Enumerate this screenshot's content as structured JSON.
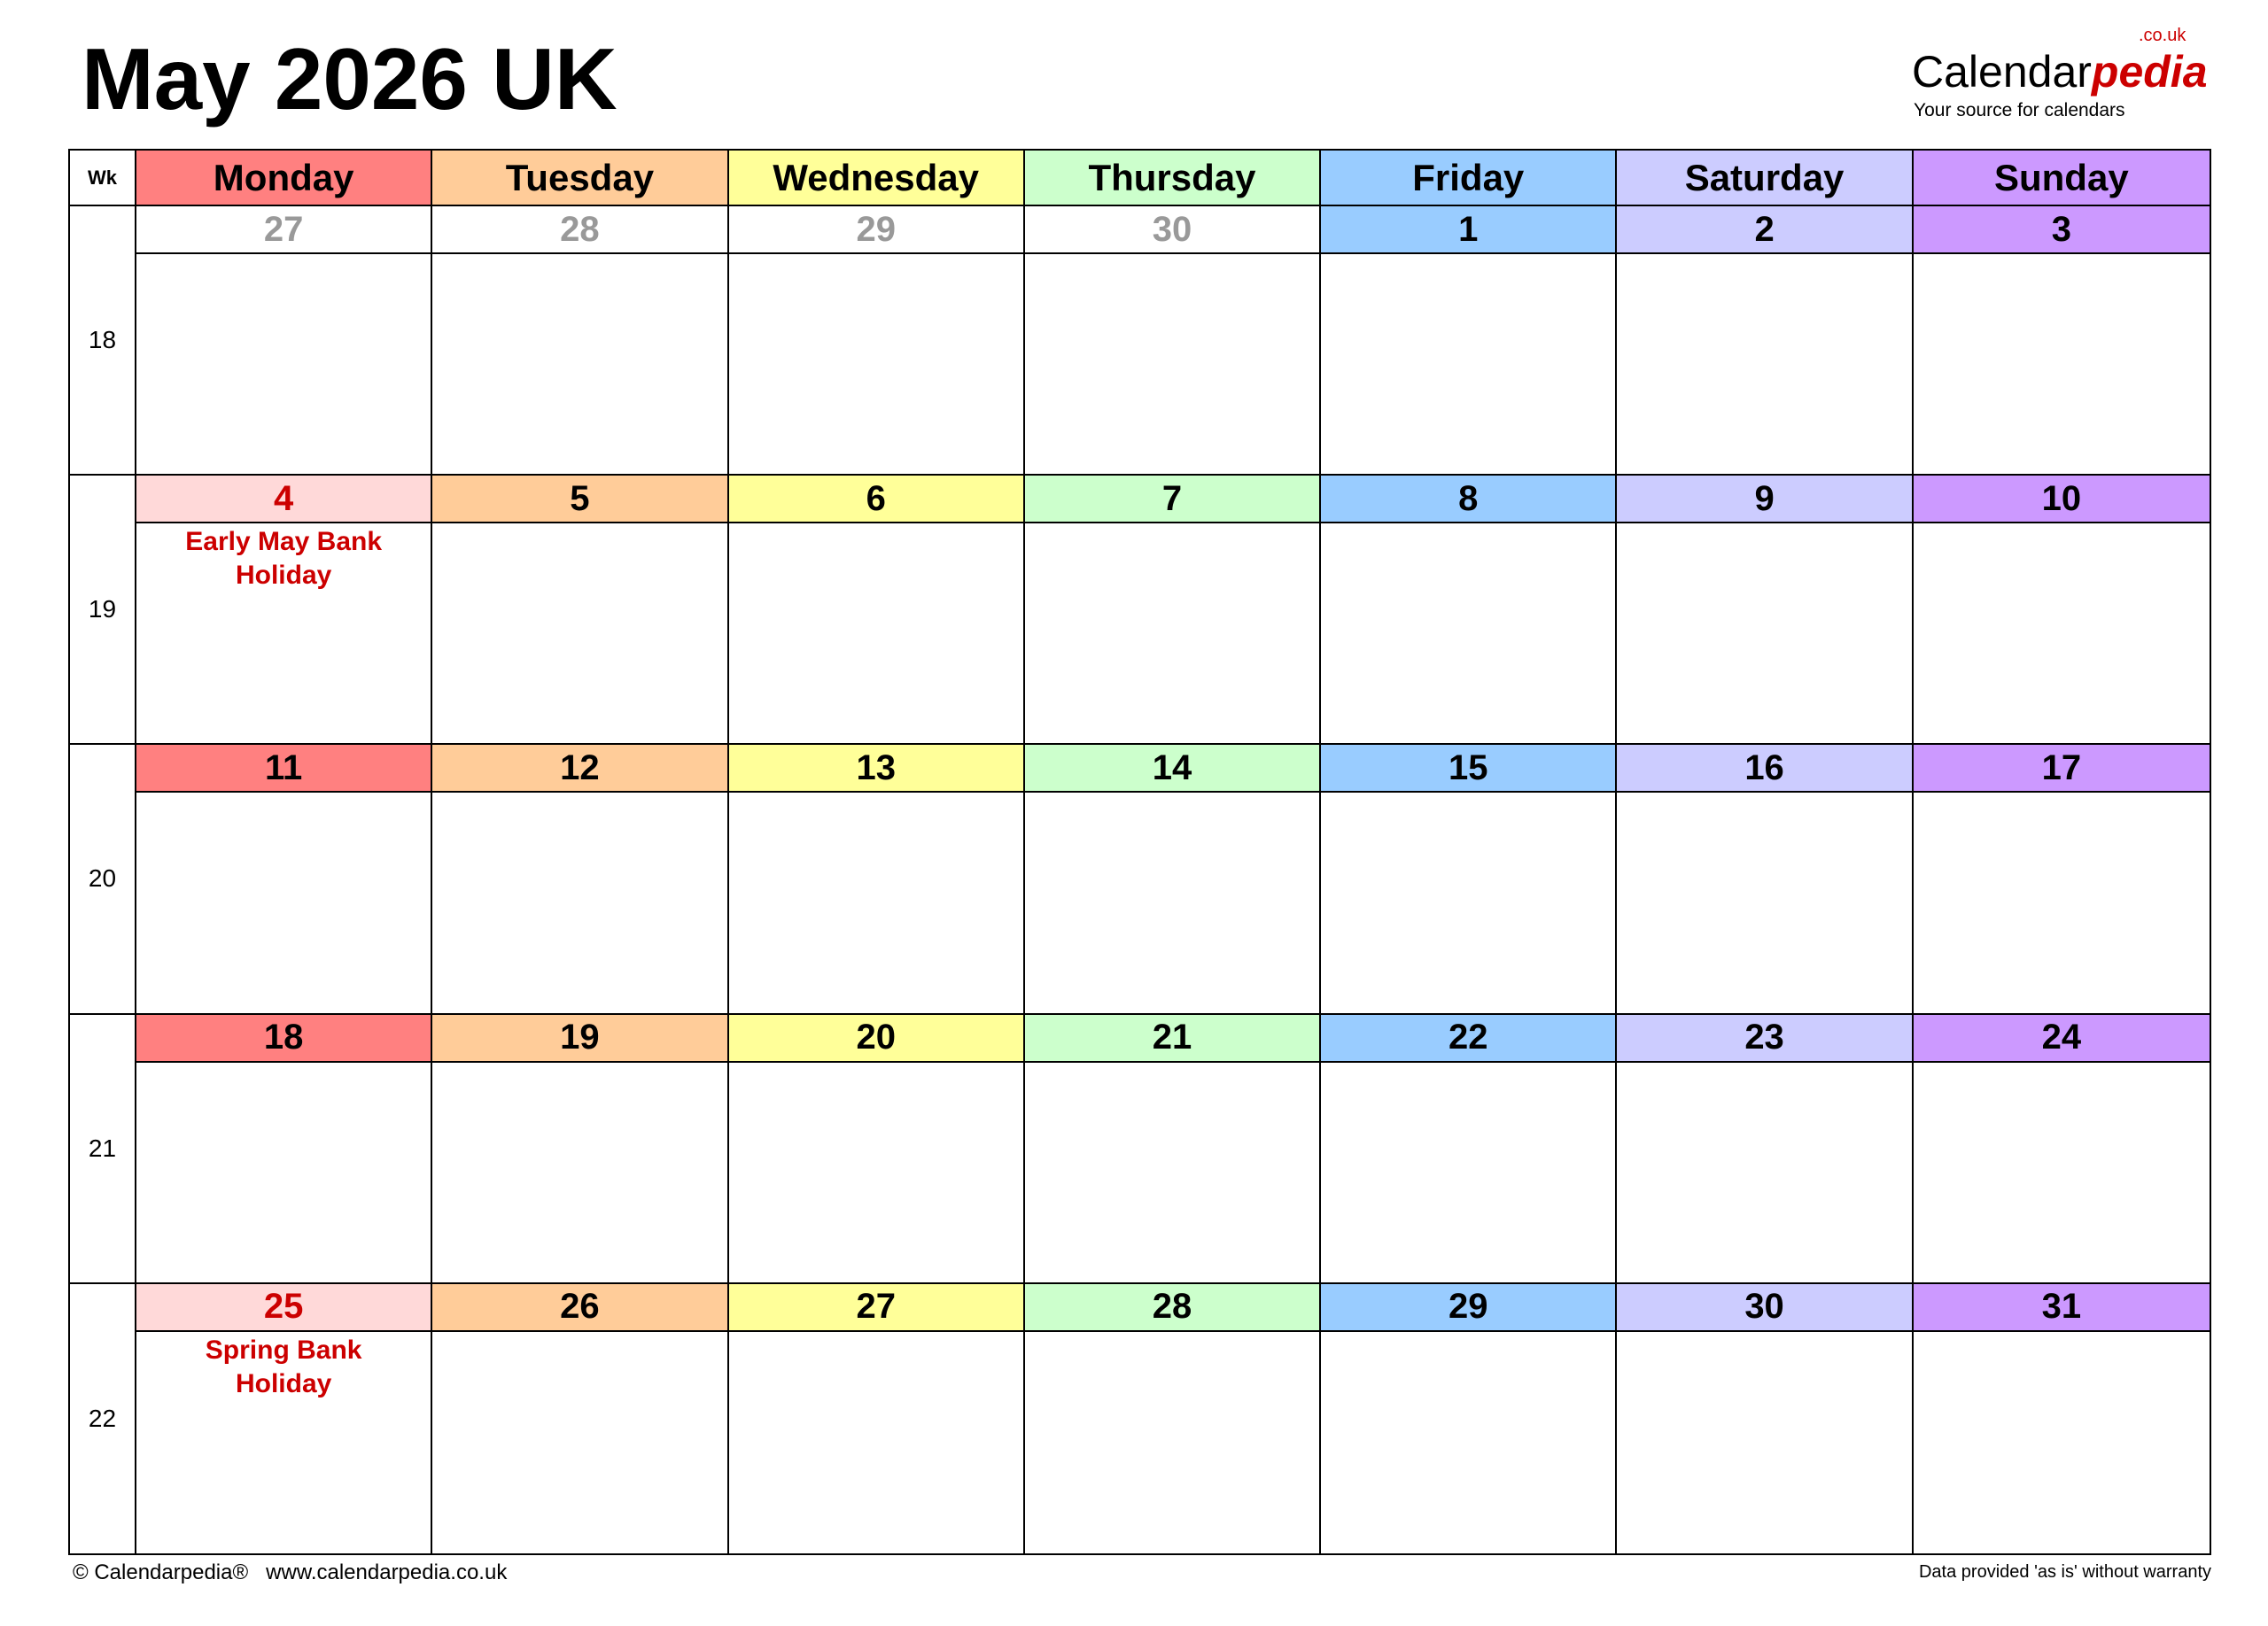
{
  "title": "May 2026 UK",
  "logo": {
    "brand_main": "Calendar",
    "brand_accent": "pedia",
    "domain": ".co.uk",
    "tagline": "Your source for calendars"
  },
  "week_header": "Wk",
  "days": [
    {
      "label": "Monday",
      "color": "#FF8080"
    },
    {
      "label": "Tuesday",
      "color": "#FFCC99"
    },
    {
      "label": "Wednesday",
      "color": "#FFFF99"
    },
    {
      "label": "Thursday",
      "color": "#CCFFCC"
    },
    {
      "label": "Friday",
      "color": "#99CCFF"
    },
    {
      "label": "Saturday",
      "color": "#CCCCFF"
    },
    {
      "label": "Sunday",
      "color": "#CC99FF"
    }
  ],
  "holiday_color": "#FFD9D9",
  "holiday_text_color": "#CC0000",
  "weeks": [
    {
      "number": "18",
      "days": [
        {
          "date": "27",
          "other_month": true
        },
        {
          "date": "28",
          "other_month": true
        },
        {
          "date": "29",
          "other_month": true
        },
        {
          "date": "30",
          "other_month": true
        },
        {
          "date": "1"
        },
        {
          "date": "2"
        },
        {
          "date": "3"
        }
      ]
    },
    {
      "number": "19",
      "days": [
        {
          "date": "4",
          "holiday": "Early May Bank Holiday"
        },
        {
          "date": "5"
        },
        {
          "date": "6"
        },
        {
          "date": "7"
        },
        {
          "date": "8"
        },
        {
          "date": "9"
        },
        {
          "date": "10"
        }
      ]
    },
    {
      "number": "20",
      "days": [
        {
          "date": "11"
        },
        {
          "date": "12"
        },
        {
          "date": "13"
        },
        {
          "date": "14"
        },
        {
          "date": "15"
        },
        {
          "date": "16"
        },
        {
          "date": "17"
        }
      ]
    },
    {
      "number": "21",
      "days": [
        {
          "date": "18"
        },
        {
          "date": "19"
        },
        {
          "date": "20"
        },
        {
          "date": "21"
        },
        {
          "date": "22"
        },
        {
          "date": "23"
        },
        {
          "date": "24"
        }
      ]
    },
    {
      "number": "22",
      "days": [
        {
          "date": "25",
          "holiday": "Spring Bank Holiday"
        },
        {
          "date": "26"
        },
        {
          "date": "27"
        },
        {
          "date": "28"
        },
        {
          "date": "29"
        },
        {
          "date": "30"
        },
        {
          "date": "31"
        }
      ]
    }
  ],
  "footer": {
    "left": "© Calendarpedia®   www.calendarpedia.co.uk",
    "right": "Data provided 'as is' without warranty"
  }
}
